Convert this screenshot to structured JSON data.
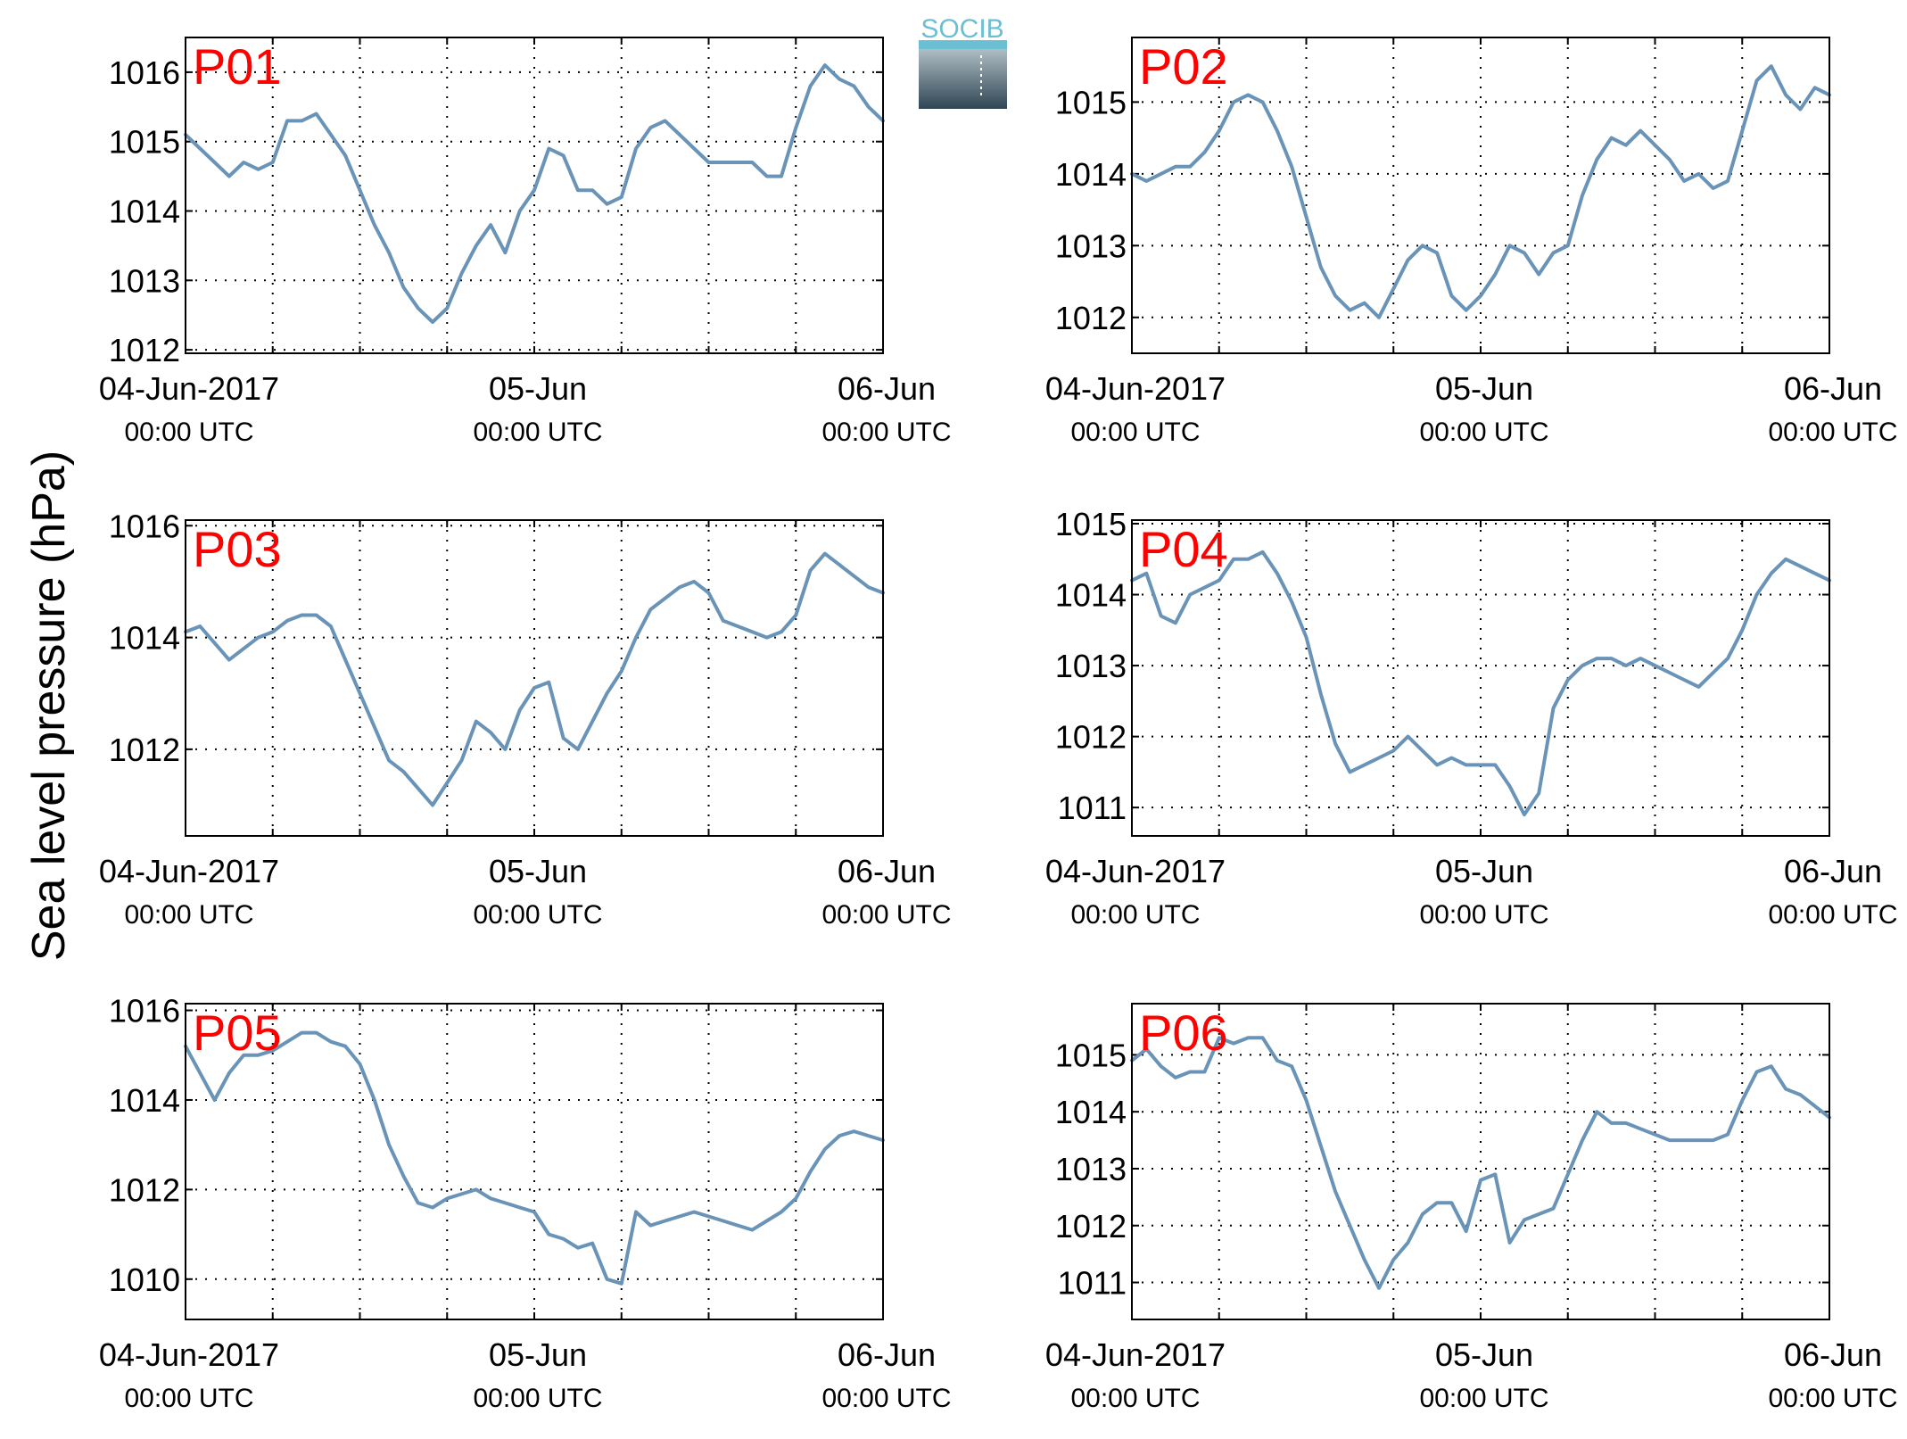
{
  "figure": {
    "ylabel": "Sea level pressure (hPa)",
    "logo_text": "SOCIB",
    "line_color": "#6a93b8",
    "label_color": "#ff0000",
    "axis_color": "#000000"
  },
  "x_ticks": {
    "major": [
      {
        "t": 0,
        "line1": "04-Jun-2017",
        "line2": "00:00 UTC"
      },
      {
        "t": 24,
        "line1": "05-Jun",
        "line2": "00:00 UTC"
      },
      {
        "t": 48,
        "line1": "06-Jun",
        "line2": "00:00 UTC"
      }
    ],
    "gridlines_hours": [
      0,
      6,
      12,
      18,
      24,
      30,
      36,
      42,
      48
    ]
  },
  "chart_data": [
    {
      "type": "line",
      "label": "P01",
      "x_unit": "hours since 04-Jun-2017 00:00 UTC",
      "xlim": [
        0,
        48
      ],
      "ylim": [
        1011.95,
        1016.5
      ],
      "yticks": [
        1012,
        1013,
        1014,
        1015,
        1016
      ],
      "grid": true,
      "x": [
        0,
        1,
        2,
        3,
        4,
        5,
        6,
        7,
        8,
        9,
        10,
        11,
        12,
        13,
        14,
        15,
        16,
        17,
        18,
        19,
        20,
        21,
        22,
        23,
        24,
        25,
        26,
        27,
        28,
        29,
        30,
        31,
        32,
        33,
        34,
        35,
        36,
        37,
        38,
        39,
        40,
        41,
        42,
        43,
        44,
        45,
        46,
        47,
        48
      ],
      "y": [
        1015.1,
        1014.9,
        1014.7,
        1014.5,
        1014.7,
        1014.6,
        1014.7,
        1015.3,
        1015.3,
        1015.4,
        1015.1,
        1014.8,
        1014.3,
        1013.8,
        1013.4,
        1012.9,
        1012.6,
        1012.4,
        1012.6,
        1013.1,
        1013.5,
        1013.8,
        1013.4,
        1014.0,
        1014.3,
        1014.9,
        1014.8,
        1014.3,
        1014.3,
        1014.1,
        1014.2,
        1014.9,
        1015.2,
        1015.3,
        1015.1,
        1014.9,
        1014.7,
        1014.7,
        1014.7,
        1014.7,
        1014.5,
        1014.5,
        1015.2,
        1015.8,
        1016.1,
        1015.9,
        1015.8,
        1015.5,
        1015.3
      ]
    },
    {
      "type": "line",
      "label": "P02",
      "x_unit": "hours since 04-Jun-2017 00:00 UTC",
      "xlim": [
        0,
        48
      ],
      "ylim": [
        1011.5,
        1015.9
      ],
      "yticks": [
        1012,
        1013,
        1014,
        1015
      ],
      "grid": true,
      "x": [
        0,
        1,
        2,
        3,
        4,
        5,
        6,
        7,
        8,
        9,
        10,
        11,
        12,
        13,
        14,
        15,
        16,
        17,
        18,
        19,
        20,
        21,
        22,
        23,
        24,
        25,
        26,
        27,
        28,
        29,
        30,
        31,
        32,
        33,
        34,
        35,
        36,
        37,
        38,
        39,
        40,
        41,
        42,
        43,
        44,
        45,
        46,
        47,
        48
      ],
      "y": [
        1014.0,
        1013.9,
        1014.0,
        1014.1,
        1014.1,
        1014.3,
        1014.6,
        1015.0,
        1015.1,
        1015.0,
        1014.6,
        1014.1,
        1013.4,
        1012.7,
        1012.3,
        1012.1,
        1012.2,
        1012.0,
        1012.4,
        1012.8,
        1013.0,
        1012.9,
        1012.3,
        1012.1,
        1012.3,
        1012.6,
        1013.0,
        1012.9,
        1012.6,
        1012.9,
        1013.0,
        1013.7,
        1014.2,
        1014.5,
        1014.4,
        1014.6,
        1014.4,
        1014.2,
        1013.9,
        1014.0,
        1013.8,
        1013.9,
        1014.6,
        1015.3,
        1015.5,
        1015.1,
        1014.9,
        1015.2,
        1015.1
      ]
    },
    {
      "type": "line",
      "label": "P03",
      "x_unit": "hours since 04-Jun-2017 00:00 UTC",
      "xlim": [
        0,
        48
      ],
      "ylim": [
        1010.45,
        1016.1
      ],
      "yticks": [
        1012,
        1014,
        1016
      ],
      "grid": true,
      "x": [
        0,
        1,
        2,
        3,
        4,
        5,
        6,
        7,
        8,
        9,
        10,
        11,
        12,
        13,
        14,
        15,
        16,
        17,
        18,
        19,
        20,
        21,
        22,
        23,
        24,
        25,
        26,
        27,
        28,
        29,
        30,
        31,
        32,
        33,
        34,
        35,
        36,
        37,
        38,
        39,
        40,
        41,
        42,
        43,
        44,
        45,
        46,
        47,
        48
      ],
      "y": [
        1014.1,
        1014.2,
        1013.9,
        1013.6,
        1013.8,
        1014.0,
        1014.1,
        1014.3,
        1014.4,
        1014.4,
        1014.2,
        1013.6,
        1013.0,
        1012.4,
        1011.8,
        1011.6,
        1011.3,
        1011.0,
        1011.4,
        1011.8,
        1012.5,
        1012.3,
        1012.0,
        1012.7,
        1013.1,
        1013.2,
        1012.2,
        1012.0,
        1012.5,
        1013.0,
        1013.4,
        1014.0,
        1014.5,
        1014.7,
        1014.9,
        1015.0,
        1014.8,
        1014.3,
        1014.2,
        1014.1,
        1014.0,
        1014.1,
        1014.4,
        1015.2,
        1015.5,
        1015.3,
        1015.1,
        1014.9,
        1014.8
      ]
    },
    {
      "type": "line",
      "label": "P04",
      "x_unit": "hours since 04-Jun-2017 00:00 UTC",
      "xlim": [
        0,
        48
      ],
      "ylim": [
        1010.6,
        1015.05
      ],
      "yticks": [
        1011,
        1012,
        1013,
        1014,
        1015
      ],
      "grid": true,
      "x": [
        0,
        1,
        2,
        3,
        4,
        5,
        6,
        7,
        8,
        9,
        10,
        11,
        12,
        13,
        14,
        15,
        16,
        17,
        18,
        19,
        20,
        21,
        22,
        23,
        24,
        25,
        26,
        27,
        28,
        29,
        30,
        31,
        32,
        33,
        34,
        35,
        36,
        37,
        38,
        39,
        40,
        41,
        42,
        43,
        44,
        45,
        46,
        47,
        48
      ],
      "y": [
        1014.2,
        1014.3,
        1013.7,
        1013.6,
        1014.0,
        1014.1,
        1014.2,
        1014.5,
        1014.5,
        1014.6,
        1014.3,
        1013.9,
        1013.4,
        1012.6,
        1011.9,
        1011.5,
        1011.6,
        1011.7,
        1011.8,
        1012.0,
        1011.8,
        1011.6,
        1011.7,
        1011.6,
        1011.6,
        1011.6,
        1011.3,
        1010.9,
        1011.2,
        1012.4,
        1012.8,
        1013.0,
        1013.1,
        1013.1,
        1013.0,
        1013.1,
        1013.0,
        1012.9,
        1012.8,
        1012.7,
        1012.9,
        1013.1,
        1013.5,
        1014.0,
        1014.3,
        1014.5,
        1014.4,
        1014.3,
        1014.2
      ]
    },
    {
      "type": "line",
      "label": "P05",
      "x_unit": "hours since 04-Jun-2017 00:00 UTC",
      "xlim": [
        0,
        48
      ],
      "ylim": [
        1009.1,
        1016.15
      ],
      "yticks": [
        1010,
        1012,
        1014,
        1016
      ],
      "grid": true,
      "x": [
        0,
        1,
        2,
        3,
        4,
        5,
        6,
        7,
        8,
        9,
        10,
        11,
        12,
        13,
        14,
        15,
        16,
        17,
        18,
        19,
        20,
        21,
        22,
        23,
        24,
        25,
        26,
        27,
        28,
        29,
        30,
        31,
        32,
        33,
        34,
        35,
        36,
        37,
        38,
        39,
        40,
        41,
        42,
        43,
        44,
        45,
        46,
        47,
        48
      ],
      "y": [
        1015.2,
        1014.6,
        1014.0,
        1014.6,
        1015.0,
        1015.0,
        1015.1,
        1015.3,
        1015.5,
        1015.5,
        1015.3,
        1015.2,
        1014.8,
        1014.0,
        1013.0,
        1012.3,
        1011.7,
        1011.6,
        1011.8,
        1011.9,
        1012.0,
        1011.8,
        1011.7,
        1011.6,
        1011.5,
        1011.0,
        1010.9,
        1010.7,
        1010.8,
        1010.0,
        1009.9,
        1011.5,
        1011.2,
        1011.3,
        1011.4,
        1011.5,
        1011.4,
        1011.3,
        1011.2,
        1011.1,
        1011.3,
        1011.5,
        1011.8,
        1012.4,
        1012.9,
        1013.2,
        1013.3,
        1013.2,
        1013.1
      ]
    },
    {
      "type": "line",
      "label": "P06",
      "x_unit": "hours since 04-Jun-2017 00:00 UTC",
      "xlim": [
        0,
        48
      ],
      "ylim": [
        1010.35,
        1015.9
      ],
      "yticks": [
        1011,
        1012,
        1013,
        1014,
        1015
      ],
      "grid": true,
      "x": [
        0,
        1,
        2,
        3,
        4,
        5,
        6,
        7,
        8,
        9,
        10,
        11,
        12,
        13,
        14,
        15,
        16,
        17,
        18,
        19,
        20,
        21,
        22,
        23,
        24,
        25,
        26,
        27,
        28,
        29,
        30,
        31,
        32,
        33,
        34,
        35,
        36,
        37,
        38,
        39,
        40,
        41,
        42,
        43,
        44,
        45,
        46,
        47,
        48
      ],
      "y": [
        1014.9,
        1015.1,
        1014.8,
        1014.6,
        1014.7,
        1014.7,
        1015.3,
        1015.2,
        1015.3,
        1015.3,
        1014.9,
        1014.8,
        1014.2,
        1013.4,
        1012.6,
        1012.0,
        1011.4,
        1010.9,
        1011.4,
        1011.7,
        1012.2,
        1012.4,
        1012.4,
        1011.9,
        1012.8,
        1012.9,
        1011.7,
        1012.1,
        1012.2,
        1012.3,
        1012.9,
        1013.5,
        1014.0,
        1013.8,
        1013.8,
        1013.7,
        1013.6,
        1013.5,
        1013.5,
        1013.5,
        1013.5,
        1013.6,
        1014.2,
        1014.7,
        1014.8,
        1014.4,
        1014.3,
        1014.1,
        1013.9
      ]
    }
  ]
}
